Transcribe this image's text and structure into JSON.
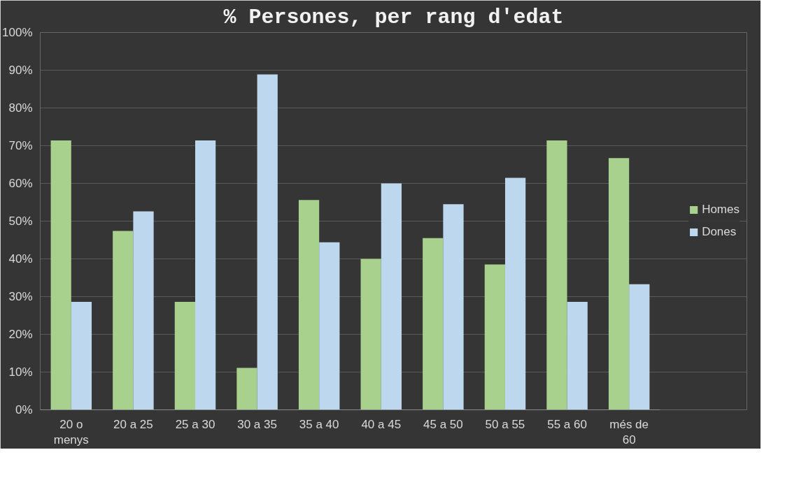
{
  "chart_data": {
    "type": "bar",
    "title": "% Persones, per rang d'edat",
    "categories": [
      "20 o menys",
      "20 a 25",
      "25 a 30",
      "30 a 35",
      "35 a 40",
      "40 a 45",
      "45 a 50",
      "50 a 55",
      "55 a 60",
      "més de 60"
    ],
    "series": [
      {
        "name": "Homes",
        "color": "#a9d18e",
        "values": [
          71.4,
          47.4,
          28.6,
          11.1,
          55.6,
          40.0,
          45.5,
          38.5,
          71.4,
          66.7
        ]
      },
      {
        "name": "Dones",
        "color": "#bdd7ee",
        "values": [
          28.6,
          52.6,
          71.4,
          88.9,
          44.4,
          60.0,
          54.5,
          61.5,
          28.6,
          33.3
        ]
      }
    ],
    "ylim": [
      0,
      100
    ],
    "yticks": [
      {
        "value": 0,
        "label": "0%"
      },
      {
        "value": 10,
        "label": "10%"
      },
      {
        "value": 20,
        "label": "20%"
      },
      {
        "value": 30,
        "label": "30%"
      },
      {
        "value": 40,
        "label": "40%"
      },
      {
        "value": 50,
        "label": "50%"
      },
      {
        "value": 60,
        "label": "60%"
      },
      {
        "value": 70,
        "label": "70%"
      },
      {
        "value": 80,
        "label": "80%"
      },
      {
        "value": 90,
        "label": "90%"
      },
      {
        "value": 100,
        "label": "100%"
      }
    ],
    "grid": "y",
    "legend": "right"
  }
}
